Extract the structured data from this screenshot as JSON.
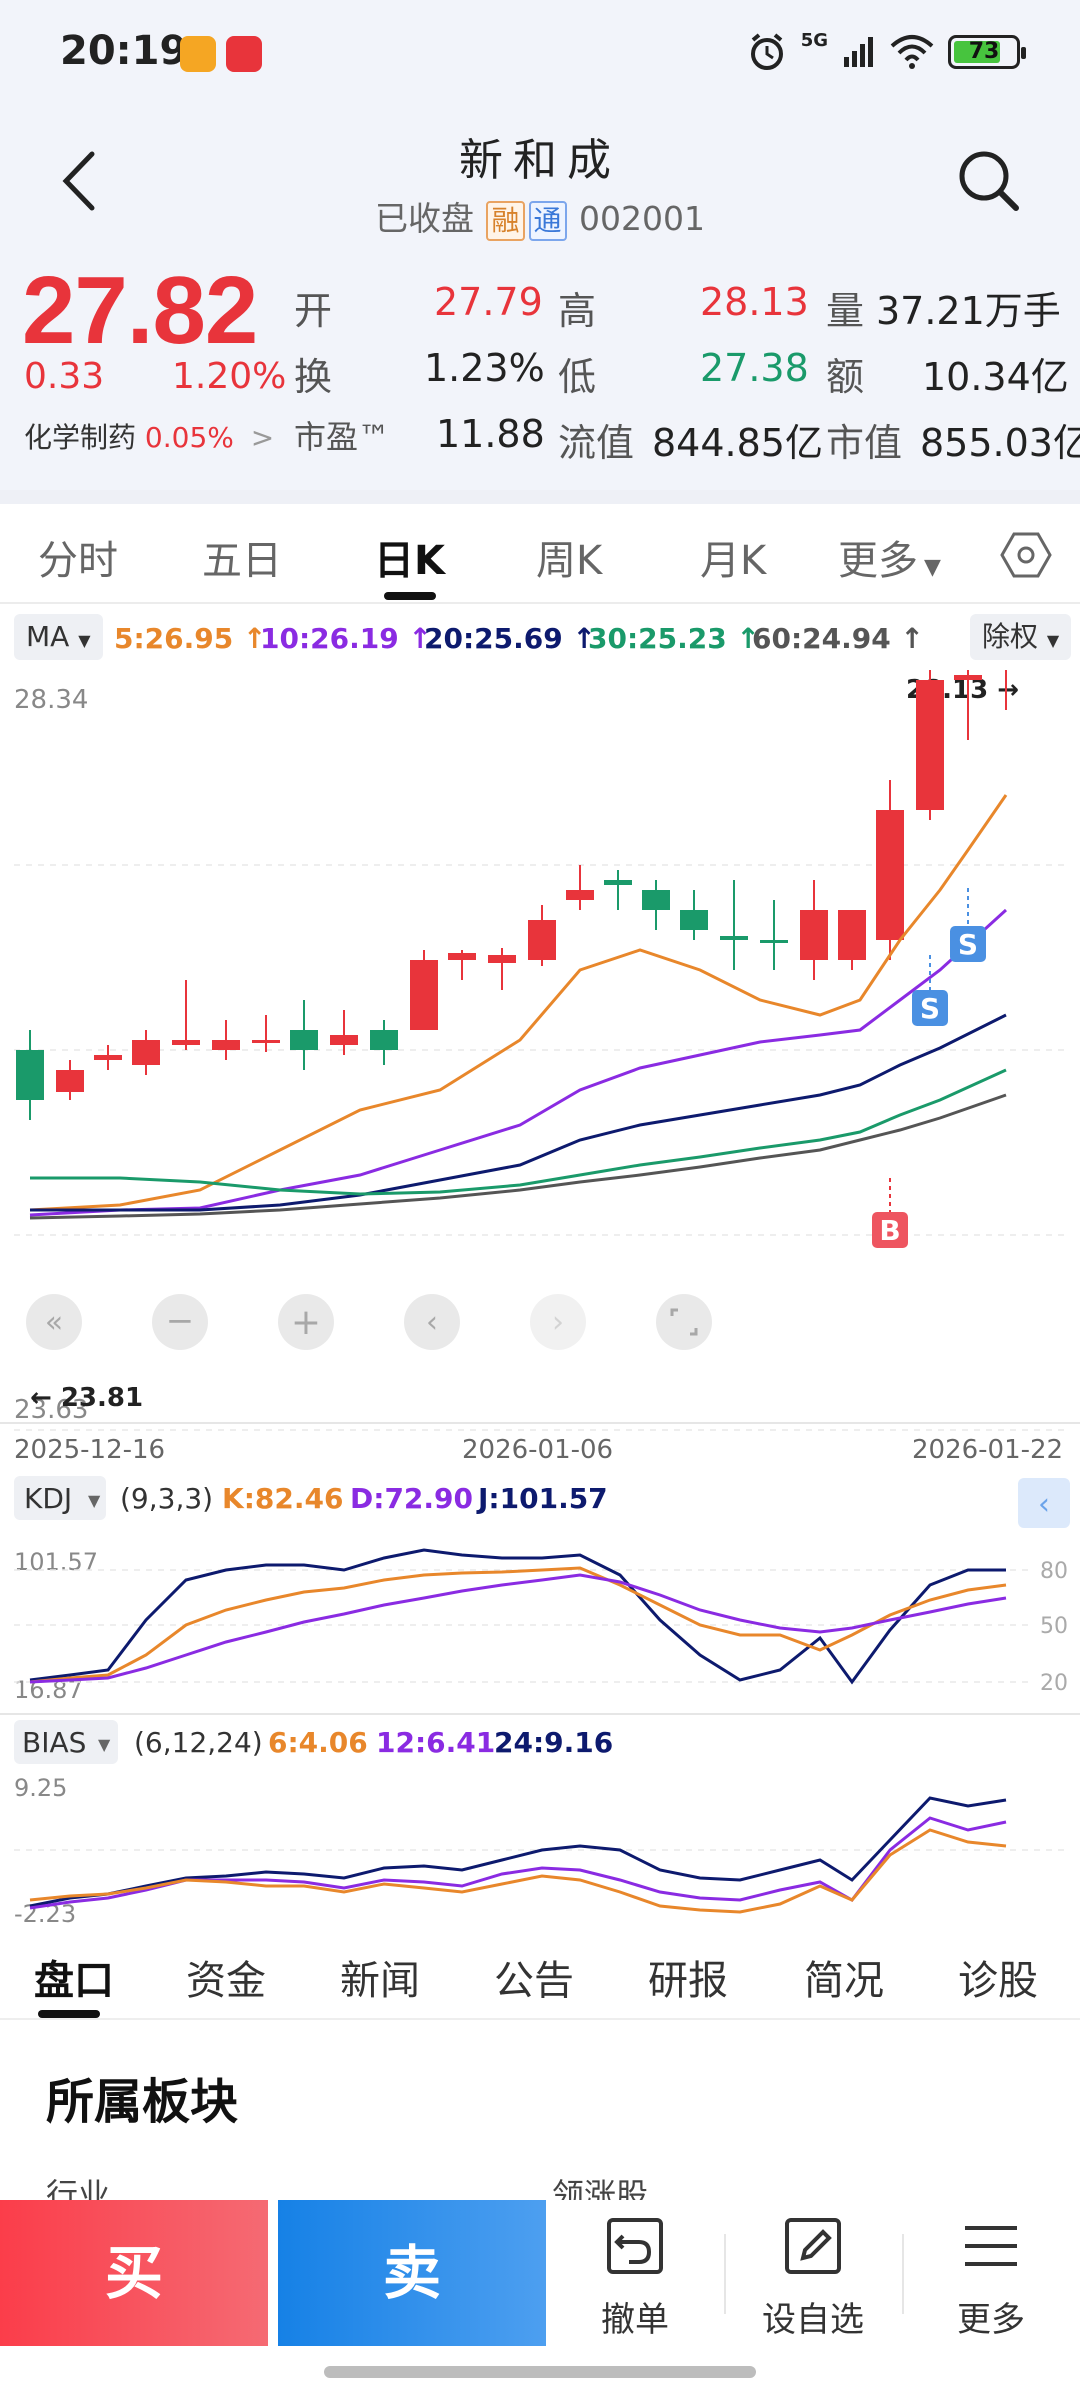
{
  "status_bar": {
    "time": "20:19",
    "network": "5G",
    "battery": "73"
  },
  "header": {
    "title": "新和成",
    "status": "已收盘",
    "tag_rong": "融",
    "tag_tong": "通",
    "code": "002001"
  },
  "quote": {
    "price": "27.82",
    "change": "0.33",
    "change_pct": "1.20%",
    "sector_name": "化学制药",
    "sector_pct": "0.05%",
    "sector_arrow": ">",
    "open_label": "开",
    "open": "27.79",
    "high_label": "高",
    "high": "28.13",
    "volume_label": "量",
    "volume": "37.21万手",
    "turnover_label": "换",
    "turnover": "1.23%",
    "low_label": "低",
    "low": "27.38",
    "amount_label": "额",
    "amount": "10.34亿",
    "pe_label": "市盈™",
    "pe": "11.88",
    "float_cap_label": "流值",
    "float_cap": "844.85亿",
    "market_cap_label": "市值",
    "market_cap": "855.03亿"
  },
  "chart_tabs": [
    "分时",
    "五日",
    "日K",
    "周K",
    "月K",
    "更多"
  ],
  "active_chart_tab": "日K",
  "ma_row": {
    "selector": "MA",
    "ma5": "5:26.95 ↑",
    "ma10": "10:26.19 ↑",
    "ma20": "20:25.69 ↑",
    "ma30": "30:25.23 ↑",
    "ma60": "60:24.94 ↑",
    "adjust": "除权"
  },
  "kline": {
    "y_top_label": "28.34",
    "y_bottom_label": "23.63",
    "high_marker": "28.13",
    "low_marker": "23.81",
    "x_labels": [
      "2025-12-16",
      "2026-01-06",
      "2026-01-22"
    ],
    "signal_sell": "S",
    "signal_buy": "B"
  },
  "kdj": {
    "selector": "KDJ",
    "params": "(9,3,3)",
    "k": "K:82.46",
    "d": "D:72.90",
    "j": "J:101.57",
    "y_top": "101.57",
    "y_bottom": "16.87",
    "ticks": [
      "80",
      "50",
      "20"
    ]
  },
  "bias": {
    "selector": "BIAS",
    "params": "(6,12,24)",
    "b6": "6:4.06",
    "b12": "12:6.41",
    "b24": "24:9.16",
    "y_top": "9.25",
    "y_bottom": "-2.23"
  },
  "bottom_tabs": [
    "盘口",
    "资金",
    "新闻",
    "公告",
    "研报",
    "简况",
    "诊股"
  ],
  "section": {
    "title": "所属板块",
    "peek_left": "行业",
    "peek_right": "领涨股"
  },
  "actions": {
    "buy": "买",
    "sell": "卖",
    "cancel": "撤单",
    "watchlist": "设自选",
    "more": "更多"
  },
  "colors": {
    "up": "#e8343b",
    "down": "#1a9a6a",
    "ma5": "#e8872b",
    "ma10": "#8a2be2",
    "ma20": "#0d1a6e",
    "ma30": "#1a9a6a",
    "ma60": "#555555"
  }
}
